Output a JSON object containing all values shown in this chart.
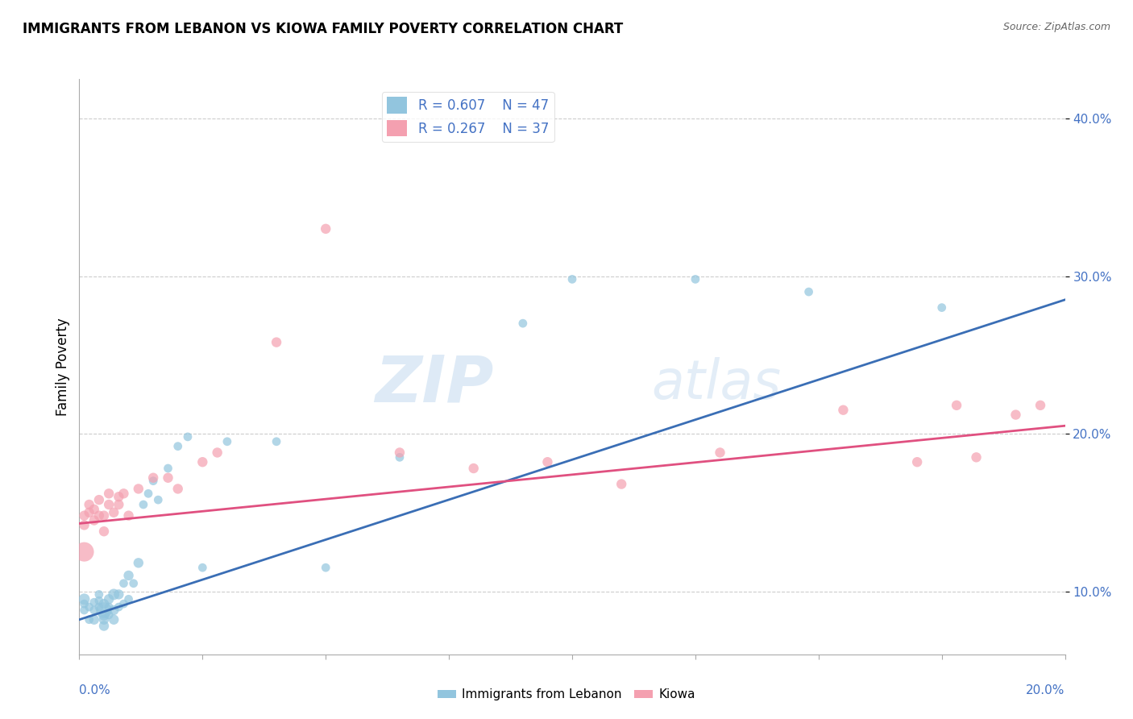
{
  "title": "IMMIGRANTS FROM LEBANON VS KIOWA FAMILY POVERTY CORRELATION CHART",
  "source": "Source: ZipAtlas.com",
  "ylabel": "Family Poverty",
  "legend_blue_r": "R = 0.607",
  "legend_blue_n": "N = 47",
  "legend_pink_r": "R = 0.267",
  "legend_pink_n": "N = 37",
  "legend_label_blue": "Immigrants from Lebanon",
  "legend_label_pink": "Kiowa",
  "blue_color": "#92c5de",
  "pink_color": "#f4a0b0",
  "blue_line_color": "#3a6eb5",
  "pink_line_color": "#e05080",
  "xlim": [
    0.0,
    0.2
  ],
  "ylim": [
    0.06,
    0.425
  ],
  "yticks": [
    0.1,
    0.2,
    0.3,
    0.4
  ],
  "ytick_labels": [
    "10.0%",
    "20.0%",
    "30.0%",
    "40.0%"
  ],
  "blue_line_x0": 0.0,
  "blue_line_y0": 0.082,
  "blue_line_x1": 0.2,
  "blue_line_y1": 0.285,
  "pink_line_x0": 0.0,
  "pink_line_y0": 0.143,
  "pink_line_x1": 0.2,
  "pink_line_y1": 0.205,
  "blue_scatter_x": [
    0.001,
    0.001,
    0.001,
    0.002,
    0.002,
    0.003,
    0.003,
    0.003,
    0.004,
    0.004,
    0.004,
    0.005,
    0.005,
    0.005,
    0.005,
    0.005,
    0.006,
    0.006,
    0.006,
    0.007,
    0.007,
    0.007,
    0.008,
    0.008,
    0.009,
    0.009,
    0.01,
    0.01,
    0.011,
    0.012,
    0.013,
    0.014,
    0.015,
    0.016,
    0.018,
    0.02,
    0.022,
    0.025,
    0.03,
    0.04,
    0.05,
    0.065,
    0.09,
    0.1,
    0.125,
    0.148,
    0.175
  ],
  "blue_scatter_y": [
    0.088,
    0.092,
    0.095,
    0.082,
    0.09,
    0.093,
    0.088,
    0.082,
    0.094,
    0.09,
    0.098,
    0.088,
    0.085,
    0.092,
    0.082,
    0.078,
    0.095,
    0.09,
    0.085,
    0.098,
    0.088,
    0.082,
    0.098,
    0.09,
    0.105,
    0.092,
    0.11,
    0.095,
    0.105,
    0.118,
    0.155,
    0.162,
    0.17,
    0.158,
    0.178,
    0.192,
    0.198,
    0.115,
    0.195,
    0.195,
    0.115,
    0.185,
    0.27,
    0.298,
    0.298,
    0.29,
    0.28
  ],
  "blue_scatter_size": [
    60,
    60,
    100,
    60,
    60,
    60,
    60,
    80,
    60,
    60,
    60,
    200,
    100,
    80,
    80,
    80,
    80,
    60,
    60,
    100,
    80,
    80,
    80,
    60,
    60,
    60,
    80,
    60,
    60,
    80,
    60,
    60,
    60,
    60,
    60,
    60,
    60,
    60,
    60,
    60,
    60,
    60,
    60,
    60,
    60,
    60,
    60
  ],
  "pink_scatter_x": [
    0.001,
    0.001,
    0.001,
    0.002,
    0.002,
    0.003,
    0.003,
    0.004,
    0.004,
    0.005,
    0.005,
    0.006,
    0.006,
    0.007,
    0.008,
    0.008,
    0.009,
    0.01,
    0.012,
    0.015,
    0.018,
    0.02,
    0.025,
    0.028,
    0.04,
    0.05,
    0.065,
    0.08,
    0.095,
    0.11,
    0.13,
    0.155,
    0.17,
    0.178,
    0.182,
    0.19,
    0.195
  ],
  "pink_scatter_y": [
    0.125,
    0.142,
    0.148,
    0.15,
    0.155,
    0.145,
    0.152,
    0.148,
    0.158,
    0.148,
    0.138,
    0.155,
    0.162,
    0.15,
    0.16,
    0.155,
    0.162,
    0.148,
    0.165,
    0.172,
    0.172,
    0.165,
    0.182,
    0.188,
    0.258,
    0.33,
    0.188,
    0.178,
    0.182,
    0.168,
    0.188,
    0.215,
    0.182,
    0.218,
    0.185,
    0.212,
    0.218
  ],
  "pink_scatter_size": [
    300,
    80,
    80,
    80,
    80,
    80,
    80,
    80,
    80,
    80,
    80,
    80,
    80,
    80,
    80,
    80,
    80,
    80,
    80,
    80,
    80,
    80,
    80,
    80,
    80,
    80,
    80,
    80,
    80,
    80,
    80,
    80,
    80,
    80,
    80,
    80,
    80
  ]
}
